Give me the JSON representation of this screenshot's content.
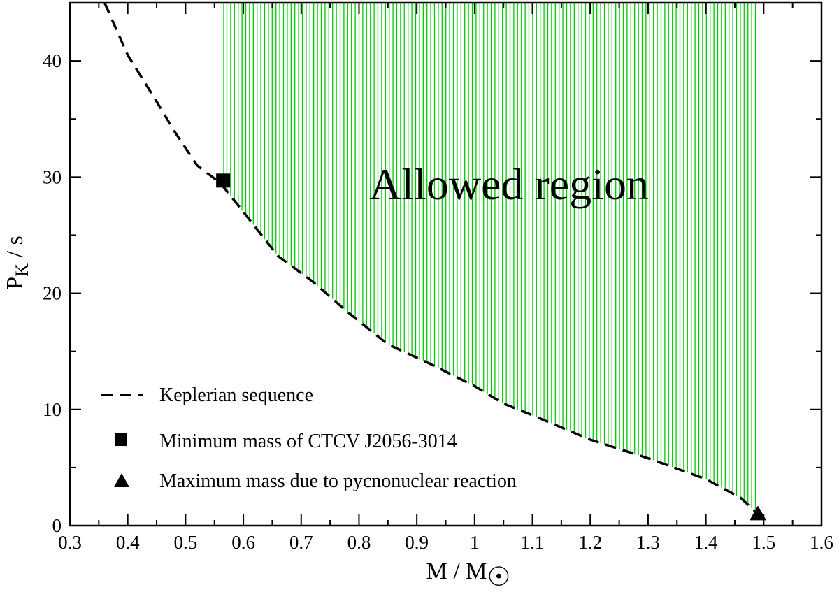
{
  "chart_data": {
    "type": "line",
    "xlim": [
      0.3,
      1.6
    ],
    "ylim": [
      0,
      45
    ],
    "xticks": [
      0.3,
      0.4,
      0.5,
      0.6,
      0.7,
      0.8,
      0.9,
      1.0,
      1.1,
      1.2,
      1.3,
      1.4,
      1.5,
      1.6
    ],
    "xtick_labels": [
      "0.3",
      "0.4",
      "0.5",
      "0.6",
      "0.7",
      "0.8",
      "0.9",
      "1",
      "1.1",
      "1.2",
      "1.3",
      "1.4",
      "1.5",
      "1.6"
    ],
    "yticks": [
      0,
      10,
      20,
      30,
      40
    ],
    "ytick_labels": [
      "0",
      "10",
      "20",
      "30",
      "40"
    ],
    "xlabel": {
      "main": "M / M",
      "symbol": "☉"
    },
    "ylabel": {
      "main": "P",
      "subscript": "K",
      "suffix": " / s"
    },
    "series": [
      {
        "name": "Keplerian sequence",
        "style": "dashed",
        "color": "#000000",
        "x": [
          0.36,
          0.4,
          0.45,
          0.48,
          0.52,
          0.56,
          0.6,
          0.66,
          0.72,
          0.78,
          0.85,
          0.92,
          1.0,
          1.05,
          1.1,
          1.2,
          1.3,
          1.4,
          1.46,
          1.49
        ],
        "y": [
          45.0,
          40.5,
          36.5,
          34.0,
          31.0,
          29.5,
          27.0,
          23.2,
          21.0,
          18.4,
          15.6,
          14.0,
          12.0,
          10.5,
          9.5,
          7.4,
          5.8,
          4.0,
          2.4,
          1.0
        ]
      }
    ],
    "markers": [
      {
        "name": "Minimum mass of CTCV J2056-3014",
        "shape": "square",
        "x": 0.565,
        "y": 29.7
      },
      {
        "name": "Maximum mass due to pycnonuclear reaction",
        "shape": "triangle",
        "x": 1.49,
        "y": 1.0
      }
    ],
    "region": {
      "label": "Allowed region",
      "color": "#00cc00",
      "x_min": 0.565,
      "x_max": 1.49,
      "pattern": "vertical-lines"
    },
    "legend": {
      "placement": "bottom-left",
      "entries": [
        {
          "label": "Keplerian sequence",
          "symbol": "dashed-line"
        },
        {
          "label": "Minimum mass of CTCV J2056-3014",
          "symbol": "square"
        },
        {
          "label": "Maximum mass due to pycnonuclear reaction",
          "symbol": "triangle"
        }
      ]
    }
  }
}
